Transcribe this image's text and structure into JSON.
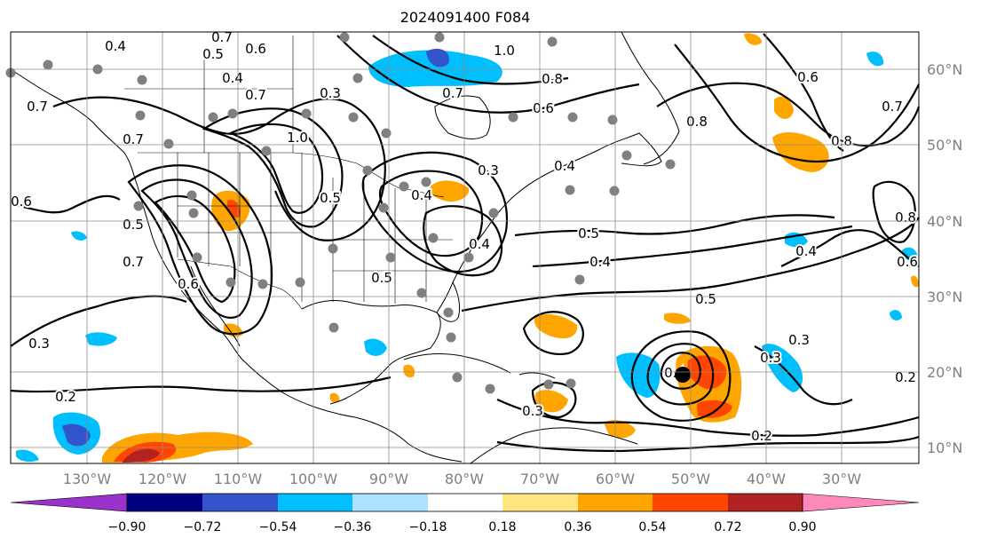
{
  "title": "2024091400 F084",
  "map": {
    "lat_labels": [
      "60°N",
      "50°N",
      "40°N",
      "30°N",
      "20°N",
      "10°N"
    ],
    "lon_labels": [
      "130°W",
      "120°W",
      "110°W",
      "100°W",
      "90°W",
      "80°W",
      "70°W",
      "60°W",
      "50°W",
      "40°W",
      "30°W"
    ],
    "contour_labels": [
      "0.4",
      "0.7",
      "0.5",
      "0.6",
      "0.4",
      "0.7",
      "0.6",
      "1.0",
      "0.7",
      "0.6",
      "0.8",
      "0.8",
      "0.7",
      "0.8",
      "0.5",
      "0.6",
      "0.3",
      "0.7",
      "1.0",
      "0.3",
      "0.4",
      "0.5",
      "0.4",
      "0.5",
      "0.4",
      "0.5",
      "0.5",
      "0.4",
      "0.6",
      "0.7",
      "0.6",
      "0.7",
      "0.3",
      "0.2",
      "0.3",
      "0.4",
      "0.3",
      "0.2",
      "0.3",
      "0.2",
      "0.4",
      "0.8"
    ],
    "colors": {
      "purple": "#9933cc",
      "navy": "#000080",
      "blue": "#3355cc",
      "cyan": "#00bfff",
      "lightblue": "#aee0ff",
      "yellow": "#ffe680",
      "orange": "#ffa500",
      "redorange": "#ff4500",
      "darkred": "#b22222",
      "pink": "#ff88bb"
    },
    "marker": "storm-center-marker"
  },
  "colorbar": {
    "ticks": [
      "−0.90",
      "−0.72",
      "−0.54",
      "−0.36",
      "−0.18",
      "0.18",
      "0.36",
      "0.54",
      "0.72",
      "0.90"
    ],
    "segment_colors": [
      "#9933cc",
      "#000080",
      "#3355cc",
      "#00bfff",
      "#aee0ff",
      "#ffffff",
      "#ffe680",
      "#ffa500",
      "#ff4500",
      "#b22222",
      "#ff88bb"
    ]
  }
}
